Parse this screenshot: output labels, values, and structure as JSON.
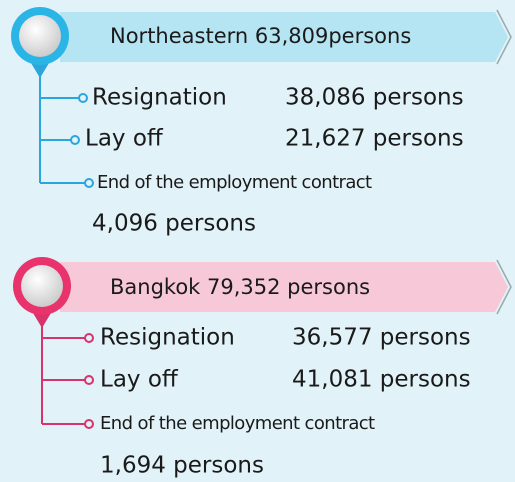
{
  "sections": [
    {
      "title": "Northeastern 63,809persons",
      "items": [
        {
          "label": "Resignation",
          "value": "38,086 persons"
        },
        {
          "label": "Lay off",
          "value": "21,627 persons"
        },
        {
          "label": "End of the employment contract",
          "value": "4,096 persons"
        }
      ]
    },
    {
      "title": "Bangkok 79,352 persons",
      "items": [
        {
          "label": "Resignation",
          "value": "36,577 persons"
        },
        {
          "label": "Lay off",
          "value": "41,081 persons"
        },
        {
          "label": "End of the employment contract",
          "value": "1,694 persons"
        }
      ]
    }
  ]
}
